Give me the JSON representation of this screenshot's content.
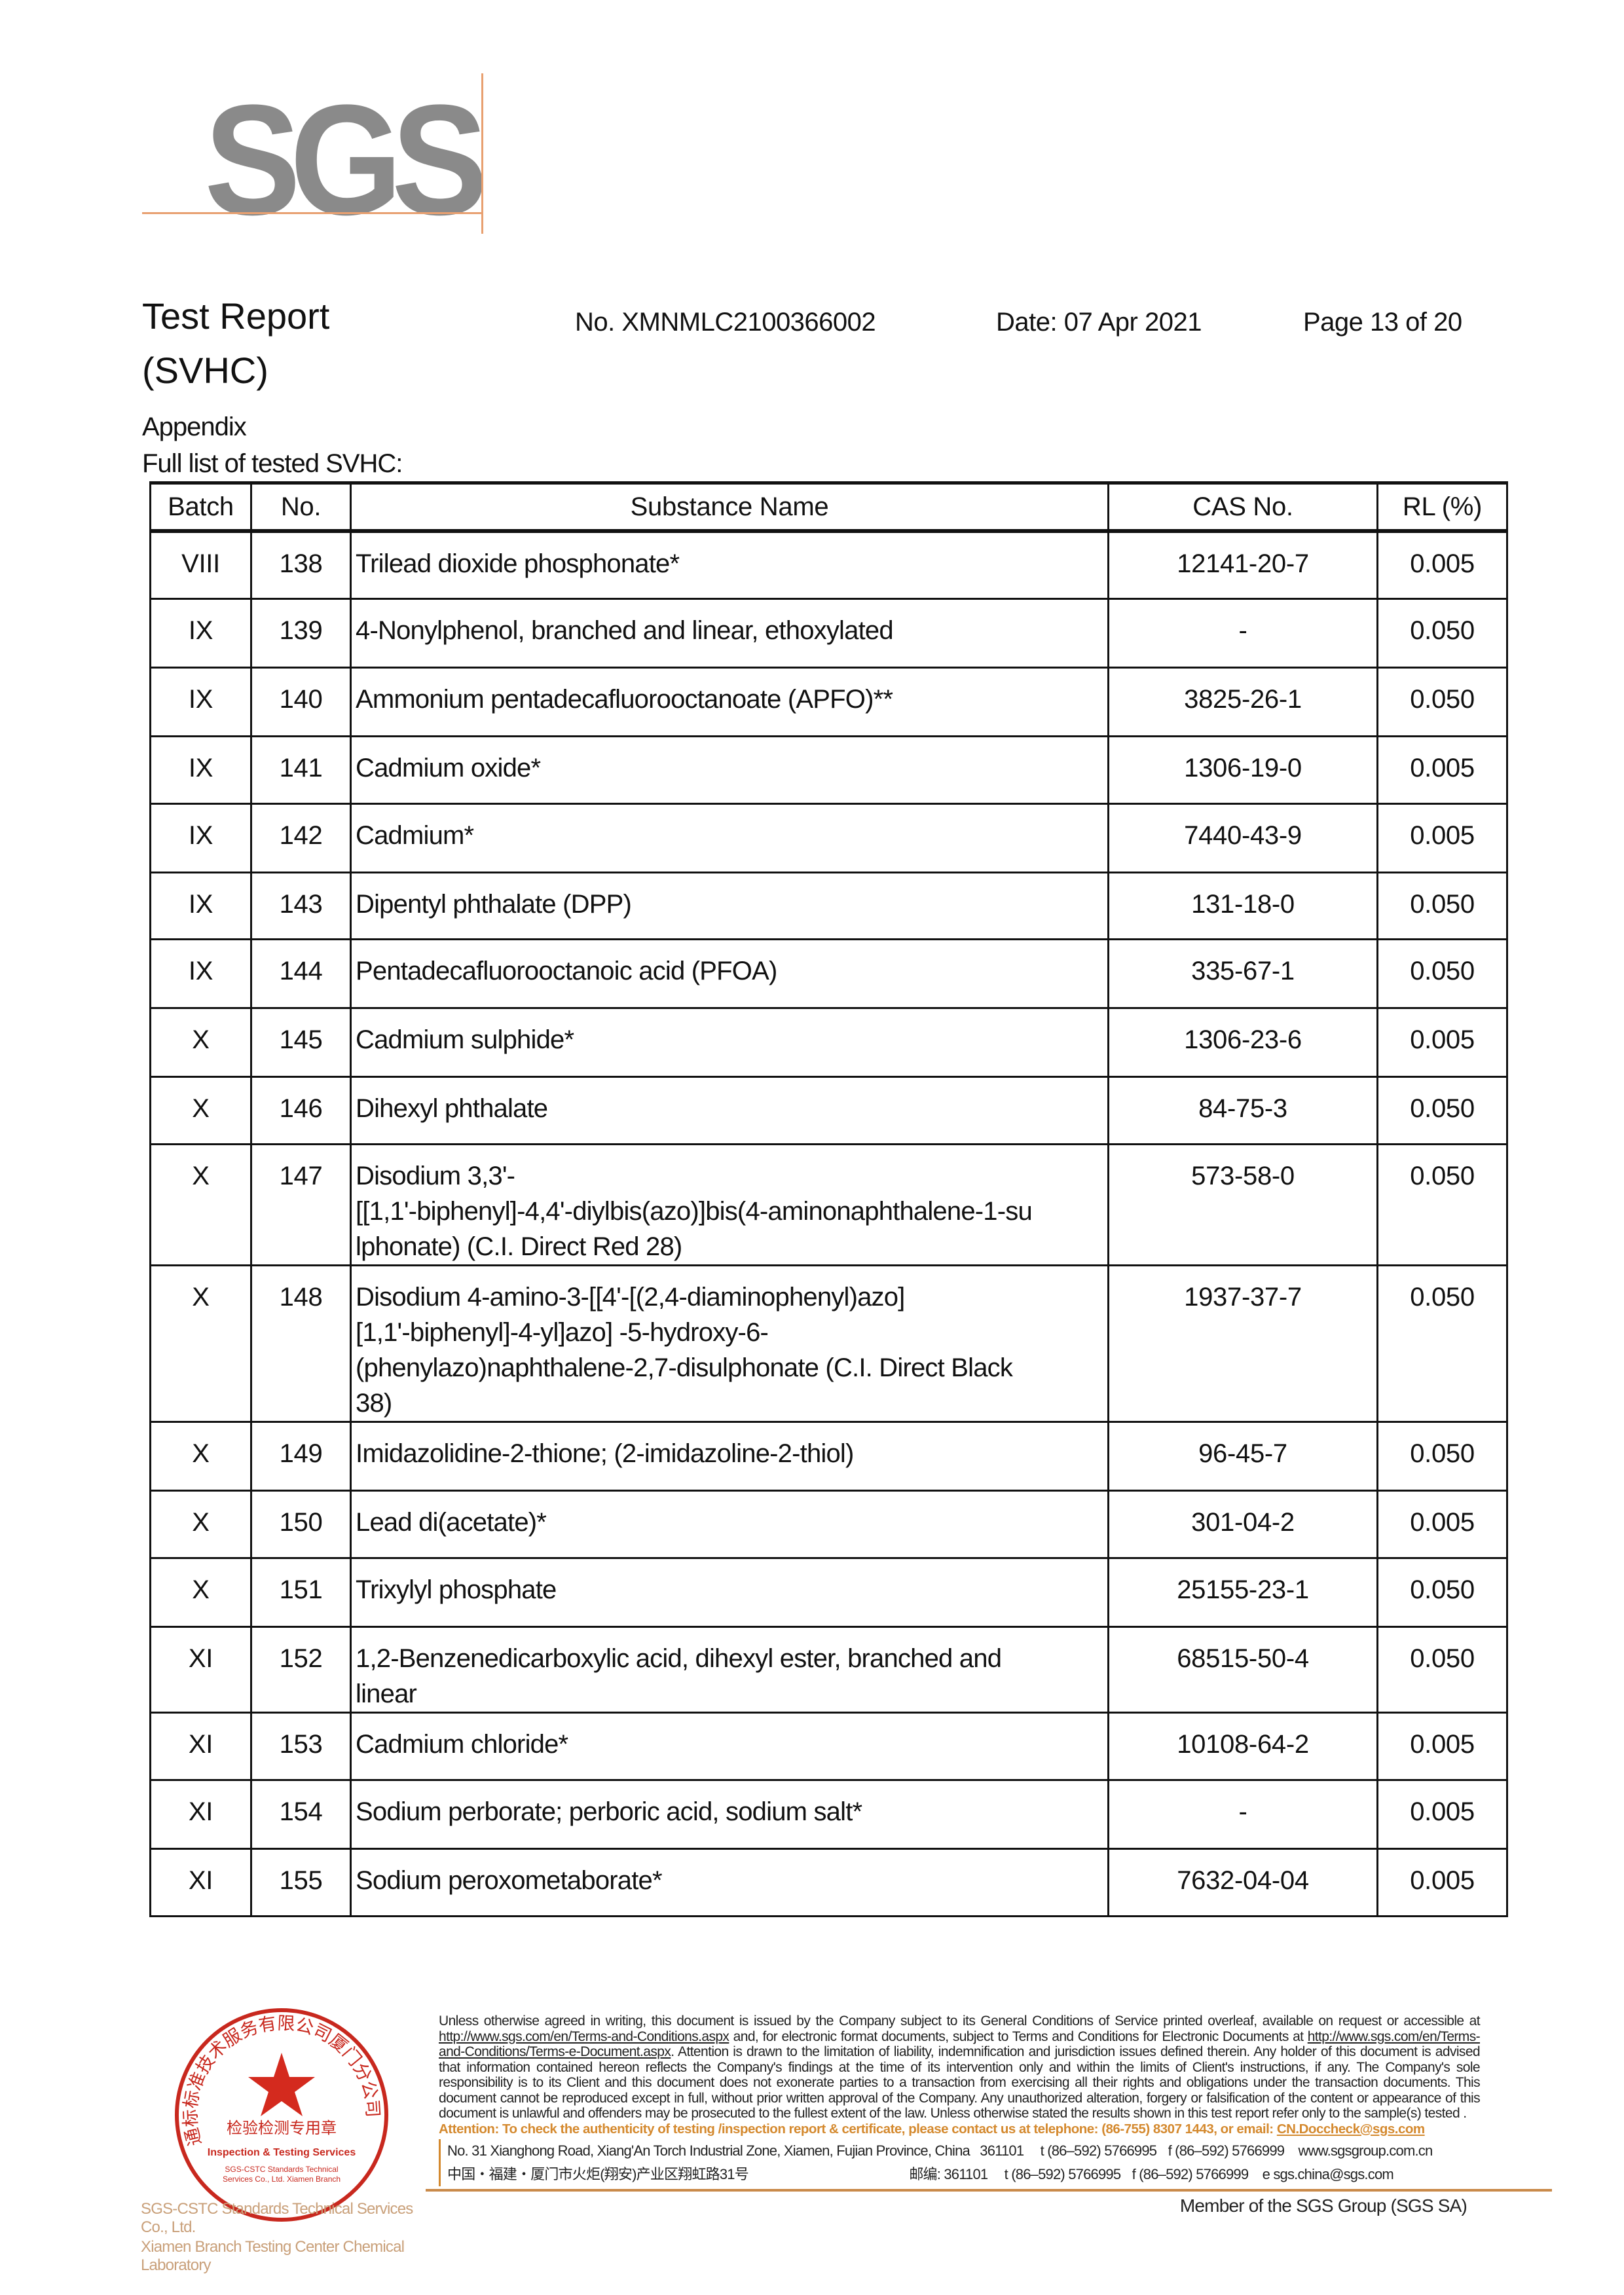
{
  "logo": {
    "text": "SGS"
  },
  "header": {
    "title_line1": "Test Report",
    "title_line2": "(SVHC)",
    "report_no": "No. XMNMLC2100366002",
    "date": "Date: 07 Apr 2021",
    "page": "Page 13 of 20"
  },
  "section": {
    "appendix": "Appendix",
    "list_title": "Full list of tested SVHC:"
  },
  "table": {
    "headers": [
      "Batch",
      "No.",
      "Substance Name",
      "CAS No.",
      "RL (%)"
    ],
    "rows": [
      {
        "batch": "VIII",
        "no": "138",
        "name": "Trilead dioxide phosphonate*",
        "cas": "12141-20-7",
        "rl": "0.005"
      },
      {
        "batch": "IX",
        "no": "139",
        "name": "4-Nonylphenol, branched and linear, ethoxylated",
        "cas": "-",
        "rl": "0.050"
      },
      {
        "batch": "IX",
        "no": "140",
        "name": "Ammonium pentadecafluorooctanoate (APFO)**",
        "cas": "3825-26-1",
        "rl": "0.050"
      },
      {
        "batch": "IX",
        "no": "141",
        "name": "Cadmium oxide*",
        "cas": "1306-19-0",
        "rl": "0.005"
      },
      {
        "batch": "IX",
        "no": "142",
        "name": "Cadmium*",
        "cas": "7440-43-9",
        "rl": "0.005"
      },
      {
        "batch": "IX",
        "no": "143",
        "name": "Dipentyl phthalate (DPP)",
        "cas": "131-18-0",
        "rl": "0.050"
      },
      {
        "batch": "IX",
        "no": "144",
        "name": "Pentadecafluorooctanoic acid (PFOA)",
        "cas": "335-67-1",
        "rl": "0.050"
      },
      {
        "batch": "X",
        "no": "145",
        "name": "Cadmium sulphide*",
        "cas": "1306-23-6",
        "rl": "0.005"
      },
      {
        "batch": "X",
        "no": "146",
        "name": "Dihexyl phthalate",
        "cas": "84-75-3",
        "rl": "0.050"
      },
      {
        "batch": "X",
        "no": "147",
        "name": "Disodium 3,3'-\n[[1,1'-biphenyl]-4,4'-diylbis(azo)]bis(4-aminonaphthalene-1-su\nlphonate) (C.I. Direct Red 28)",
        "cas": "573-58-0",
        "rl": "0.050"
      },
      {
        "batch": "X",
        "no": "148",
        "name": "Disodium 4-amino-3-[[4'-[(2,4-diaminophenyl)azo]\n[1,1'-biphenyl]-4-yl]azo] -5-hydroxy-6-\n(phenylazo)naphthalene-2,7-disulphonate (C.I. Direct Black\n38)",
        "cas": "1937-37-7",
        "rl": "0.050"
      },
      {
        "batch": "X",
        "no": "149",
        "name": "Imidazolidine-2-thione; (2-imidazoline-2-thiol)",
        "cas": "96-45-7",
        "rl": "0.050"
      },
      {
        "batch": "X",
        "no": "150",
        "name": "Lead di(acetate)*",
        "cas": "301-04-2",
        "rl": "0.005"
      },
      {
        "batch": "X",
        "no": "151",
        "name": "Trixylyl phosphate",
        "cas": "25155-23-1",
        "rl": "0.050"
      },
      {
        "batch": "XI",
        "no": "152",
        "name": "1,2-Benzenedicarboxylic acid, dihexyl ester, branched and\nlinear",
        "cas": "68515-50-4",
        "rl": "0.050"
      },
      {
        "batch": "XI",
        "no": "153",
        "name": "Cadmium chloride*",
        "cas": "10108-64-2",
        "rl": "0.005"
      },
      {
        "batch": "XI",
        "no": "154",
        "name": "Sodium perborate; perboric acid, sodium salt*",
        "cas": "-",
        "rl": "0.005"
      },
      {
        "batch": "XI",
        "no": "155",
        "name": "Sodium peroxometaborate*",
        "cas": "7632-04-04",
        "rl": "0.005"
      }
    ]
  },
  "footer": {
    "disclaimer_1": "Unless otherwise agreed in writing, this document is issued by the Company subject to its General Conditions of Service printed overleaf, available on request or accessible at ",
    "link_1": "http://www.sgs.com/en/Terms-and-Conditions.aspx",
    "disclaimer_2": " and, for electronic format documents, subject to Terms and Conditions for Electronic Documents at ",
    "link_2": "http://www.sgs.com/en/Terms-and-Conditions/Terms-e-Document.aspx",
    "disclaimer_3": ". Attention is drawn to the limitation of liability, indemnification and jurisdiction issues defined therein. Any holder of this document is advised that information contained hereon reflects the Company's findings at the time of its intervention only and within the limits of Client's instructions, if any. The Company's sole responsibility is to its Client and this document does not exonerate parties to a transaction from exercising all their rights and obligations under the transaction documents. This document cannot be reproduced except in full, without prior written approval of the Company. Any unauthorized alteration, forgery or falsification of the content or appearance of this document is unlawful and offenders may be prosecuted to the fullest extent of the law. Unless otherwise stated the results shown in this test report refer only to the sample(s) tested .",
    "attention": "Attention: To check the authenticity of testing /inspection report & certificate, please contact us at telephone: (86-755) 8307 1443, or email: ",
    "attention_email": "CN.Doccheck@sgs.com",
    "address_en": "No. 31 Xianghong Road, Xiang'An Torch Industrial Zone, Xiamen, Fujian Province, China",
    "postcode_en": "361101",
    "address_cn": "中国・福建・厦门市火炬(翔安)产业区翔虹路31号",
    "postcode_cn": "邮编: 361101",
    "tel": "t (86–592) 5766995",
    "fax": "f (86–592) 5766999",
    "web": "www.sgsgroup.com.cn",
    "email": "e  sgs.china@sgs.com",
    "member": "Member of the SGS Group (SGS SA)"
  },
  "stamp": {
    "ring_text_cn": "通标标准技术服务有限公司厦门分公司",
    "center_cn": "检验检测专用章",
    "center_en": "Inspection & Testing Services",
    "ring_text_en": "SGS-CSTC Standards Technical Services Co., Ltd. Xiamen Branch",
    "lab_line1": "SGS-CSTC Standards Technical Services Co., Ltd.",
    "lab_line2": "Xiamen Branch Testing Center Chemical Laboratory",
    "color": "#c8281e"
  }
}
